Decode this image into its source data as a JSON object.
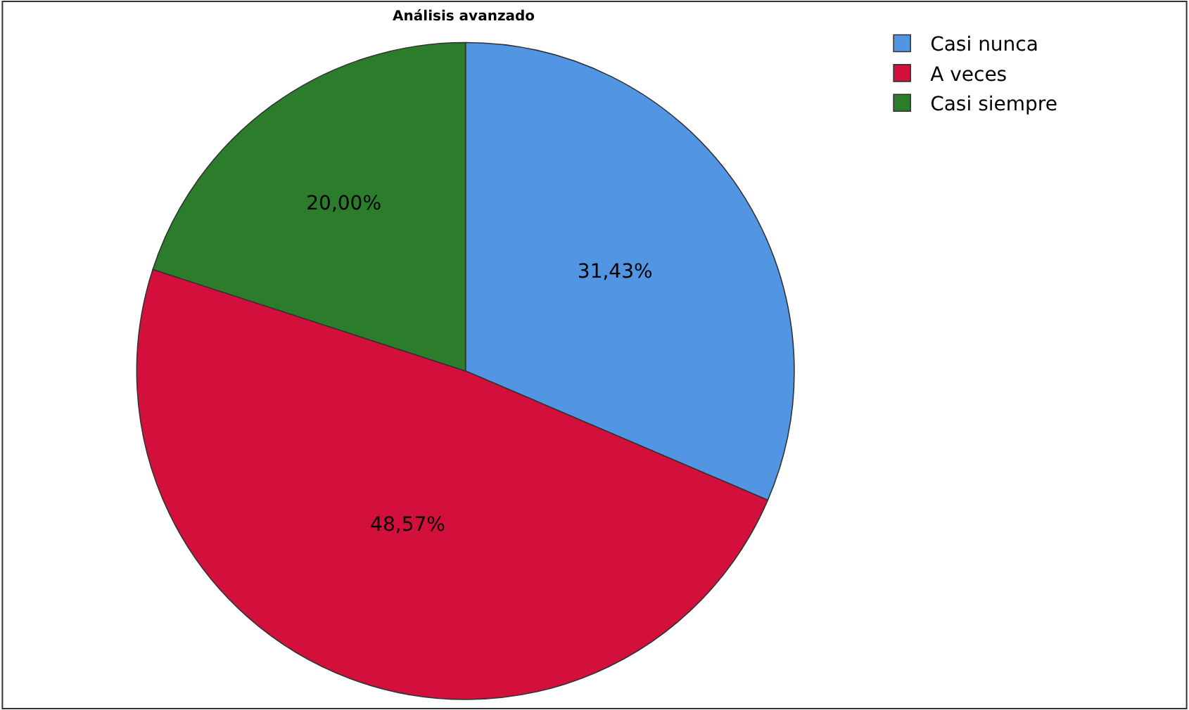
{
  "chart_data": {
    "type": "pie",
    "title": "Análisis avanzado",
    "categories": [
      "Casi nunca",
      "A veces",
      "Casi siempre"
    ],
    "values": [
      31.43,
      48.57,
      20.0
    ],
    "colors": [
      "#5295e3",
      "#d3103c",
      "#2b7d2b"
    ],
    "value_labels": [
      "31,43%",
      "48,57%",
      "20,00%"
    ],
    "legend": "top right"
  }
}
